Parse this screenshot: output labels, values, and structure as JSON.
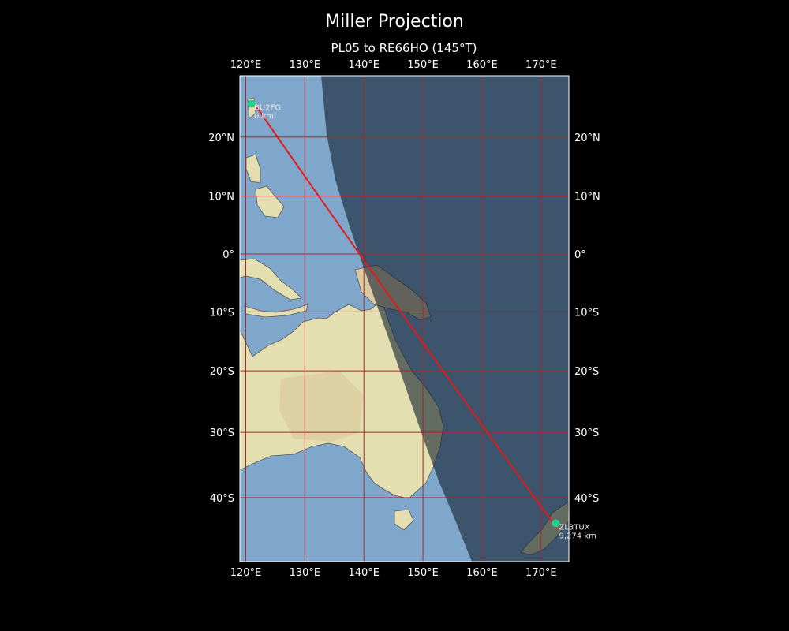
{
  "figure": {
    "title": "Miller Projection",
    "subtitle": "PL05 to RE66HO (145°T)"
  },
  "map": {
    "lon_range": [
      119,
      174.7
    ],
    "lat_range": [
      -49,
      30
    ],
    "meridians": [
      120,
      130,
      140,
      150,
      160,
      170
    ],
    "parallels": [
      20,
      10,
      0,
      -10,
      -20,
      -30,
      -40
    ],
    "meridian_labels": [
      "120°E",
      "130°E",
      "140°E",
      "150°E",
      "160°E",
      "170°E"
    ],
    "parallel_labels": [
      "20°N",
      "10°N",
      "0°",
      "10°S",
      "20°S",
      "30°S",
      "40°S"
    ],
    "colors": {
      "ocean": "#7fa7cc",
      "land": "#e3dfb0",
      "land_inland": "#d9c49a",
      "grid": "#a8272b",
      "path": "#e41a1c",
      "marker": "#1ed391",
      "night_overlay": "#0f1e2d",
      "background": "#000000"
    },
    "start": {
      "label": "BU2FG",
      "distance": "0 km",
      "lon": 121.0,
      "lat": 25.5
    },
    "end": {
      "label": "ZL3TUX",
      "distance": "9,274 km",
      "lon": 172.5,
      "lat": -43.7
    }
  }
}
